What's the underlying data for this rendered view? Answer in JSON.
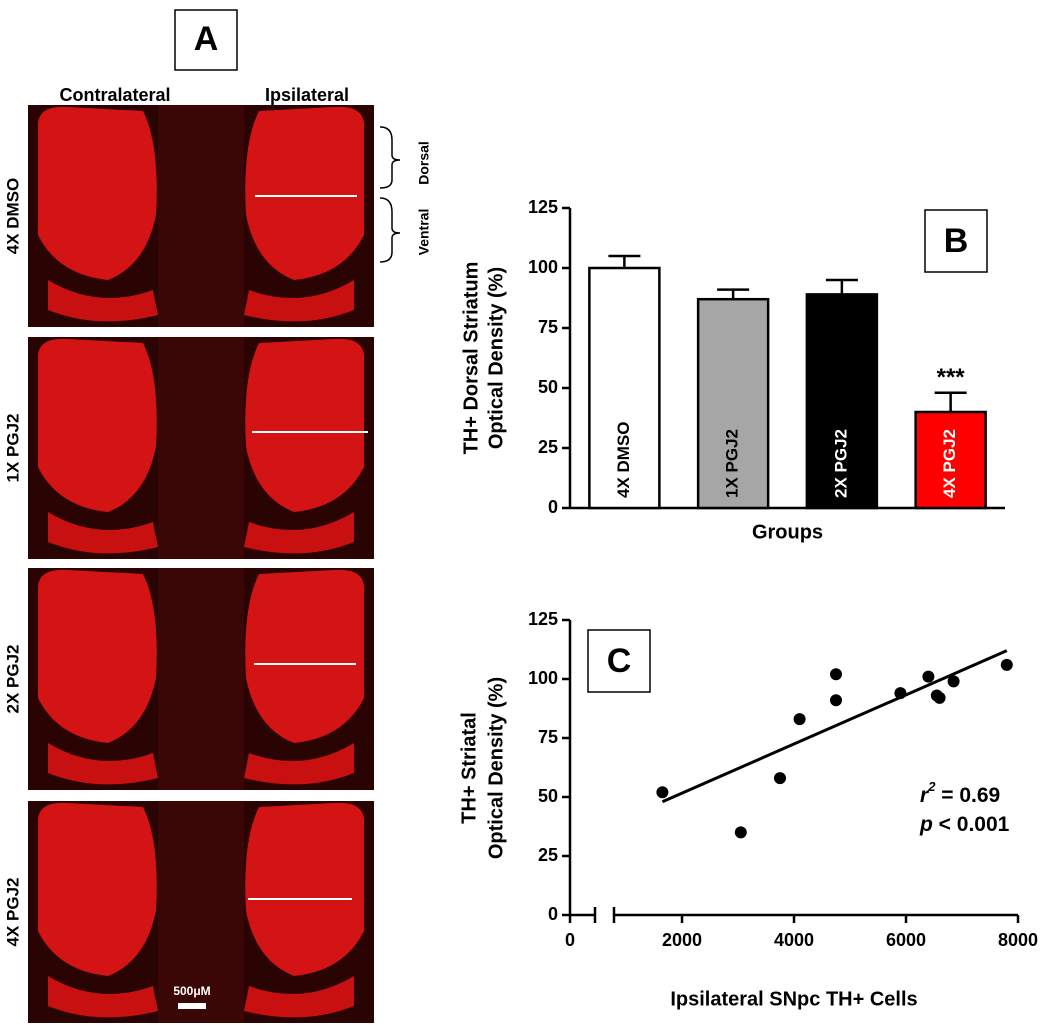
{
  "panel_a": {
    "label": "A",
    "columns": [
      "Contralateral",
      "Ipsilateral"
    ],
    "rows": [
      "4X DMSO",
      "1X PGJ2",
      "2X PGJ2",
      "4X PGJ2"
    ],
    "regions": [
      "Ventral",
      "Dorsal"
    ],
    "scale_bar": "500μM"
  },
  "chart_data": [
    {
      "type": "bar",
      "label": "B",
      "ylabel": [
        "TH+ Dorsal Striatum",
        "Optical Density (%)"
      ],
      "xlabel": "Groups",
      "categories": [
        "4X DMSO",
        "1X PGJ2",
        "2X PGJ2",
        "4X PGJ2"
      ],
      "values": [
        100,
        87,
        89,
        40
      ],
      "errors": [
        5,
        4,
        6,
        8
      ],
      "colors": [
        "#ffffff",
        "#a6a6a6",
        "#000000",
        "#ff0000"
      ],
      "significance": [
        null,
        null,
        null,
        "***"
      ],
      "ylim": [
        0,
        125
      ],
      "yticks": [
        0,
        25,
        50,
        75,
        100,
        125
      ]
    },
    {
      "type": "scatter",
      "label": "C",
      "ylabel": [
        "TH+ Striatal",
        "Optical Density (%)"
      ],
      "xlabel": "Ipsilateral SNpc TH+ Cells",
      "x": [
        1650,
        3050,
        3750,
        4100,
        4750,
        4750,
        5900,
        6400,
        6550,
        6600,
        6850,
        7800
      ],
      "values": [
        52,
        35,
        58,
        83,
        91,
        102,
        94,
        101,
        93,
        92,
        99,
        106
      ],
      "color": "#000000",
      "fit": {
        "x": [
          1650,
          7800
        ],
        "values": [
          48,
          112
        ]
      },
      "annotations": [
        "r",
        "2",
        " = 0.69",
        "p",
        " < 0.001"
      ],
      "xlim": [
        0,
        8000
      ],
      "xticks": [
        0,
        2000,
        4000,
        6000,
        8000
      ],
      "ylim": [
        0,
        125
      ],
      "yticks": [
        0,
        25,
        50,
        75,
        100,
        125
      ]
    }
  ]
}
